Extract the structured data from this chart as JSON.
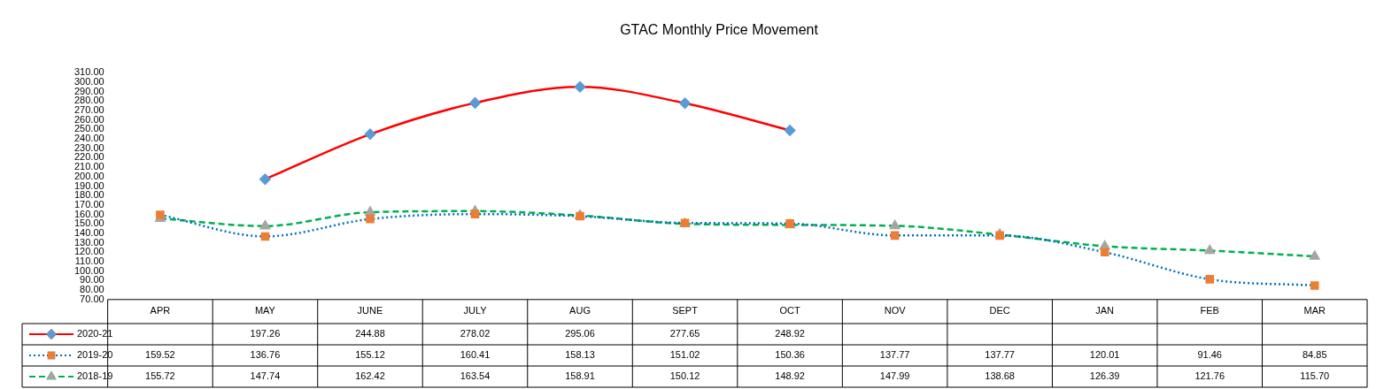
{
  "chart_data": {
    "type": "line",
    "title": "GTAC Monthly Price Movement",
    "categories": [
      "APR",
      "MAY",
      "JUNE",
      "JULY",
      "AUG",
      "SEPT",
      "OCT",
      "NOV",
      "DEC",
      "JAN",
      "FEB",
      "MAR"
    ],
    "ylim": [
      70,
      310
    ],
    "yticks": [
      {
        "value": 70,
        "label": "70.00"
      },
      {
        "value": 80,
        "label": "80.00"
      },
      {
        "value": 90,
        "label": "90.00"
      },
      {
        "value": 100,
        "label": "100.00"
      },
      {
        "value": 110,
        "label": "110.00"
      },
      {
        "value": 120,
        "label": "120.00"
      },
      {
        "value": 130,
        "label": "130.00"
      },
      {
        "value": 140,
        "label": "140.00"
      },
      {
        "value": 150,
        "label": "150.00"
      },
      {
        "value": 160,
        "label": "160.00"
      },
      {
        "value": 170,
        "label": "170.00"
      },
      {
        "value": 180,
        "label": "180.00"
      },
      {
        "value": 190,
        "label": "190.00"
      },
      {
        "value": 200,
        "label": "200.00"
      },
      {
        "value": 210,
        "label": "210.00"
      },
      {
        "value": 220,
        "label": "220.00"
      },
      {
        "value": 230,
        "label": "230.00"
      },
      {
        "value": 240,
        "label": "240.00"
      },
      {
        "value": 250,
        "label": "250.00"
      },
      {
        "value": 260,
        "label": "260.00"
      },
      {
        "value": 270,
        "label": "270.00"
      },
      {
        "value": 280,
        "label": "280.00"
      },
      {
        "value": 290,
        "label": "290.00"
      },
      {
        "value": 300,
        "label": "300.00"
      },
      {
        "value": 310,
        "label": "310.00"
      }
    ],
    "grid": false,
    "legend": "bottom left",
    "series": [
      {
        "name": "2020-21",
        "color": "#ff0000",
        "marker": "diamond",
        "line_style": "solid",
        "colors": [
          "#5b9bd5",
          "#5b9bd5",
          "#5b9bd5",
          "#5b9bd5",
          "#5b9bd5",
          "#5b9bd5",
          "#5b9bd5",
          "#5b9bd5",
          "#5b9bd5",
          "#5b9bd5",
          "#5b9bd5",
          "#5b9bd5"
        ],
        "values": [
          null,
          197.26,
          244.88,
          278.02,
          295.06,
          277.65,
          248.92,
          null,
          null,
          null,
          null,
          null
        ],
        "value_labels": [
          null,
          "197.26",
          "244.88",
          "278.02",
          "295.06",
          "277.65",
          "248.92",
          null,
          null,
          null,
          null,
          null
        ]
      },
      {
        "name": "2019-20",
        "color": "#0070c0",
        "marker": "square",
        "line_style": "dotted",
        "colors": [
          "#ed7d31",
          "#ed7d31",
          "#ed7d31",
          "#ed7d31",
          "#ed7d31",
          "#ed7d31",
          "#ed7d31",
          "#ed7d31",
          "#ed7d31",
          "#ed7d31",
          "#ed7d31",
          "#ed7d31"
        ],
        "values": [
          159.52,
          136.76,
          155.12,
          160.41,
          158.13,
          151.02,
          150.36,
          137.77,
          137.77,
          120.01,
          91.46,
          84.85
        ],
        "value_labels": [
          "159.52",
          "136.76",
          "155.12",
          "160.41",
          "158.13",
          "151.02",
          "150.36",
          "137.77",
          "137.77",
          "120.01",
          "91.46",
          "84.85"
        ]
      },
      {
        "name": "2018-19",
        "color": "#00b050",
        "marker": "triangle",
        "line_style": "dashed",
        "colors": [
          "#a5a5a5",
          "#a5a5a5",
          "#a5a5a5",
          "#a5a5a5",
          "#a5a5a5",
          "#a5a5a5",
          "#a5a5a5",
          "#a5a5a5",
          "#a5a5a5",
          "#a5a5a5",
          "#a5a5a5",
          "#a5a5a5"
        ],
        "values": [
          155.72,
          147.74,
          162.42,
          163.54,
          158.91,
          150.12,
          148.92,
          147.99,
          138.68,
          126.39,
          121.76,
          115.7
        ],
        "value_labels": [
          "155.72",
          "147.74",
          "162.42",
          "163.54",
          "158.91",
          "150.12",
          "148.92",
          "147.99",
          "138.68",
          "126.39",
          "121.76",
          "115.70"
        ]
      }
    ]
  }
}
